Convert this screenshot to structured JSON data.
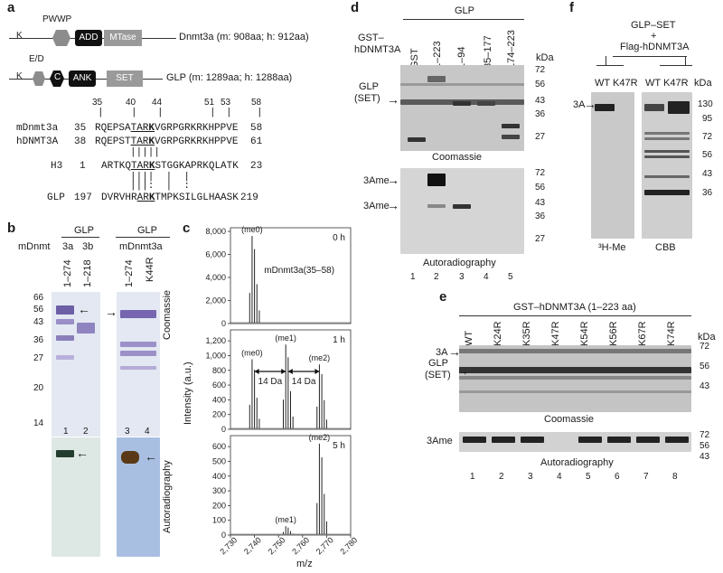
{
  "panel_labels": {
    "a": "a",
    "b": "b",
    "c": "c",
    "d": "d",
    "e": "e",
    "f": "f"
  },
  "panel_a": {
    "dnmt3a": {
      "k": "K",
      "pwwp": "PWWP",
      "add": "ADD",
      "mtase": "MTase",
      "name": "Dnmt3a (m: 908aa; h: 912aa)"
    },
    "glp": {
      "k": "K",
      "ed": "E/D",
      "c": "C",
      "ank": "ANK",
      "set": "SET",
      "name": "GLP (m: 1289aa; h: 1288aa)"
    },
    "positions": [
      "35",
      "40",
      "44",
      "51",
      "53",
      "58"
    ],
    "alignment": [
      {
        "name": "mDnmt3a",
        "start": "35",
        "seq_pre": "RQEPSA",
        "seq_ul": "TAR",
        "seq_k": "K",
        "seq_post": "VGRPGRKRKHPPVE",
        "end": "58"
      },
      {
        "name": "hDNMT3A",
        "start": "38",
        "seq_pre": "RQEPST",
        "seq_ul": "TAR",
        "seq_k": "K",
        "seq_post": "VGRPGRKRKHPPVE",
        "end": "61"
      },
      {
        "name": "H3",
        "start": "1",
        "seq_pre": "ARTKQ",
        "seq_ul": "TAR",
        "seq_k": "K",
        "seq_post": "STGGKAPRKQLATK",
        "end": "23"
      },
      {
        "name": "GLP",
        "start": "197",
        "seq_pre": "DVRVHR",
        "seq_ul": "AR",
        "seq_k": "K",
        "seq_post": "TMPKSILGLHAASK",
        "end": "219"
      }
    ],
    "match_lines": [
      "|||||",
      "||||  |  |",
      "|||:  |  :"
    ]
  },
  "panel_b": {
    "header_left": "GLP",
    "header_right": "GLP",
    "row_label": "mDnmt",
    "row_right": "mDnmt3a",
    "lane_groups": [
      "3a",
      "3b"
    ],
    "lanes": [
      "1–274",
      "1–218",
      "1–274",
      "K44R"
    ],
    "mw": [
      "66",
      "56",
      "43",
      "36",
      "27",
      "20",
      "14"
    ],
    "coomassie": "Coomassie",
    "autoradiography": "Autoradiography",
    "lane_numbers": [
      "1",
      "2",
      "3",
      "4"
    ]
  },
  "panel_c": {
    "ylabel": "Intensity (a.u.)",
    "xlabel": "m/z",
    "x_ticks": [
      "2,730",
      "2,740",
      "2,750",
      "2,760",
      "2,770",
      "2,780"
    ],
    "subplots": [
      {
        "time": "0 h",
        "y_ticks": [
          "8,000",
          "6,000",
          "4,000",
          "2,000",
          "0"
        ],
        "ymax": 8000,
        "peaks": [
          {
            "label": "(me0)",
            "mz": 2739,
            "height": 7600
          }
        ],
        "annotation": "mDnmt3a(35–58)"
      },
      {
        "time": "1 h",
        "y_ticks": [
          "1,200",
          "1,000",
          "800",
          "600",
          "400",
          "200",
          "0"
        ],
        "ymax": 1300,
        "peaks": [
          {
            "label": "(me0)",
            "mz": 2739,
            "height": 950
          },
          {
            "label": "(me1)",
            "mz": 2753,
            "height": 1150
          },
          {
            "label": "(me2)",
            "mz": 2767,
            "height": 880
          }
        ],
        "shift_labels": [
          "14 Da",
          "14 Da"
        ]
      },
      {
        "time": "5 h",
        "y_ticks": [
          "600",
          "500",
          "400",
          "300",
          "200",
          "100",
          "0"
        ],
        "ymax": 650,
        "peaks": [
          {
            "label": "(me1)",
            "mz": 2753,
            "height": 60
          },
          {
            "label": "(me2)",
            "mz": 2767,
            "height": 620
          }
        ]
      }
    ]
  },
  "panel_d": {
    "header": "GLP",
    "row_label_1": "GST–",
    "row_label_2": "hDNMT3A",
    "lanes": [
      "GST",
      "1–223",
      "1–94",
      "85–177",
      "174–223"
    ],
    "kda": "kDa",
    "mw": [
      "72",
      "56",
      "43",
      "36",
      "27"
    ],
    "glp_label_1": "GLP",
    "glp_label_2": "(SET)",
    "coomassie": "Coomassie",
    "ame_labels": [
      "3Ame",
      "3Ame"
    ],
    "autoradiography": "Autoradiography",
    "lane_numbers": [
      "1",
      "2",
      "3",
      "4",
      "5"
    ]
  },
  "panel_e": {
    "header": "GST–hDNMT3A (1–223 aa)",
    "lanes": [
      "WT",
      "K24R",
      "K35R",
      "K47R",
      "K54R",
      "K56R",
      "K67R",
      "K74R"
    ],
    "kda": "kDa",
    "mw_top": [
      "72",
      "56",
      "43"
    ],
    "mw_bottom": [
      "72",
      "56",
      "43"
    ],
    "labels_top": [
      "3A",
      "GLP",
      "(SET)"
    ],
    "coomassie": "Coomassie",
    "label_bottom": "3Ame",
    "autoradiography": "Autoradiography",
    "lane_numbers": [
      "1",
      "2",
      "3",
      "4",
      "5",
      "6",
      "7",
      "8"
    ]
  },
  "panel_f": {
    "header_1": "GLP–SET",
    "header_2": "+",
    "header_3": "Flag-hDNMT3A",
    "lanes": [
      "WT",
      "K47R",
      "WT",
      "K47R"
    ],
    "kda": "kDa",
    "mw": [
      "130",
      "95",
      "72",
      "56",
      "43",
      "36"
    ],
    "band_label": "3A",
    "label_left": "³H-Me",
    "label_right": "CBB"
  }
}
